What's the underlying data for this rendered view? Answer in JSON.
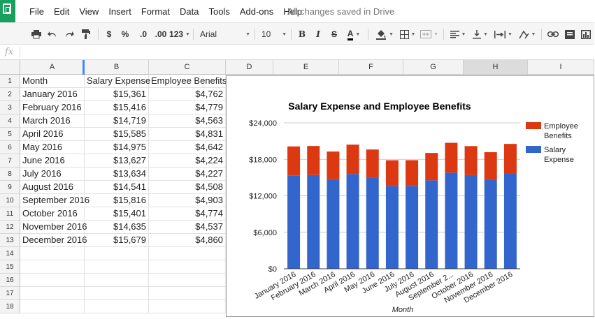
{
  "menubar": {
    "items": [
      "File",
      "Edit",
      "View",
      "Insert",
      "Format",
      "Data",
      "Tools",
      "Add-ons",
      "Help"
    ],
    "status": "All changes saved in Drive"
  },
  "toolbar": {
    "currency": "$",
    "percent": "%",
    "dec_decrease": ".0",
    "dec_increase": ".00",
    "format_more": "123",
    "font": "Arial",
    "font_size": "10",
    "bold": "B",
    "italic": "I",
    "strike": "S",
    "text_color": "A"
  },
  "formula_bar": {
    "fx": "fx",
    "value": ""
  },
  "columns": [
    "A",
    "B",
    "C",
    "D",
    "E",
    "F",
    "G",
    "H",
    "I"
  ],
  "rows": [
    "1",
    "2",
    "3",
    "4",
    "5",
    "6",
    "7",
    "8",
    "9",
    "10",
    "11",
    "12",
    "13",
    "14",
    "15",
    "16",
    "17",
    "18"
  ],
  "table": {
    "headers": [
      "Month",
      "Salary Expense",
      "Employee Benefits"
    ],
    "rows": [
      [
        "January 2016",
        "$15,361",
        "$4,762"
      ],
      [
        "February 2016",
        "$15,416",
        "$4,779"
      ],
      [
        "March 2016",
        "$14,719",
        "$4,563"
      ],
      [
        "April 2016",
        "$15,585",
        "$4,831"
      ],
      [
        "May 2016",
        "$14,975",
        "$4,642"
      ],
      [
        "June 2016",
        "$13,627",
        "$4,224"
      ],
      [
        "July 2016",
        "$13,634",
        "$4,227"
      ],
      [
        "August 2016",
        "$14,541",
        "$4,508"
      ],
      [
        "September 2016",
        "$15,816",
        "$4,903"
      ],
      [
        "October 2016",
        "$15,401",
        "$4,774"
      ],
      [
        "November 2016",
        "$14,635",
        "$4,537"
      ],
      [
        "December 2016",
        "$15,679",
        "$4,860"
      ]
    ]
  },
  "chart_data": {
    "type": "bar",
    "stacked": true,
    "title": "Salary Expense and Employee Benefits",
    "xlabel": "Month",
    "ylabel": "",
    "categories": [
      "January 2016",
      "February 2016",
      "March 2016",
      "April 2016",
      "May 2016",
      "June 2016",
      "July 2016",
      "August 2016",
      "September 2...",
      "October 2016",
      "November 2016",
      "December 2016"
    ],
    "series": [
      {
        "name": "Salary Expense",
        "color": "#3366cc",
        "values": [
          15361,
          15416,
          14719,
          15585,
          14975,
          13627,
          13634,
          14541,
          15816,
          15401,
          14635,
          15679
        ]
      },
      {
        "name": "Employee Benefits",
        "color": "#dc3912",
        "values": [
          4762,
          4779,
          4563,
          4831,
          4642,
          4224,
          4227,
          4508,
          4903,
          4774,
          4537,
          4860
        ]
      }
    ],
    "legend_entries": [
      {
        "lines": [
          "Employee",
          "Benefits"
        ],
        "color": "#dc3912"
      },
      {
        "lines": [
          "Salary",
          "Expense"
        ],
        "color": "#3366cc"
      }
    ],
    "ylim": [
      0,
      24000
    ],
    "yticks": [
      0,
      6000,
      12000,
      18000,
      24000
    ],
    "ytick_labels": [
      "$0",
      "$6,000",
      "$12,000",
      "$18,000",
      "$24,000"
    ],
    "grid": true,
    "legend_position": "right"
  }
}
